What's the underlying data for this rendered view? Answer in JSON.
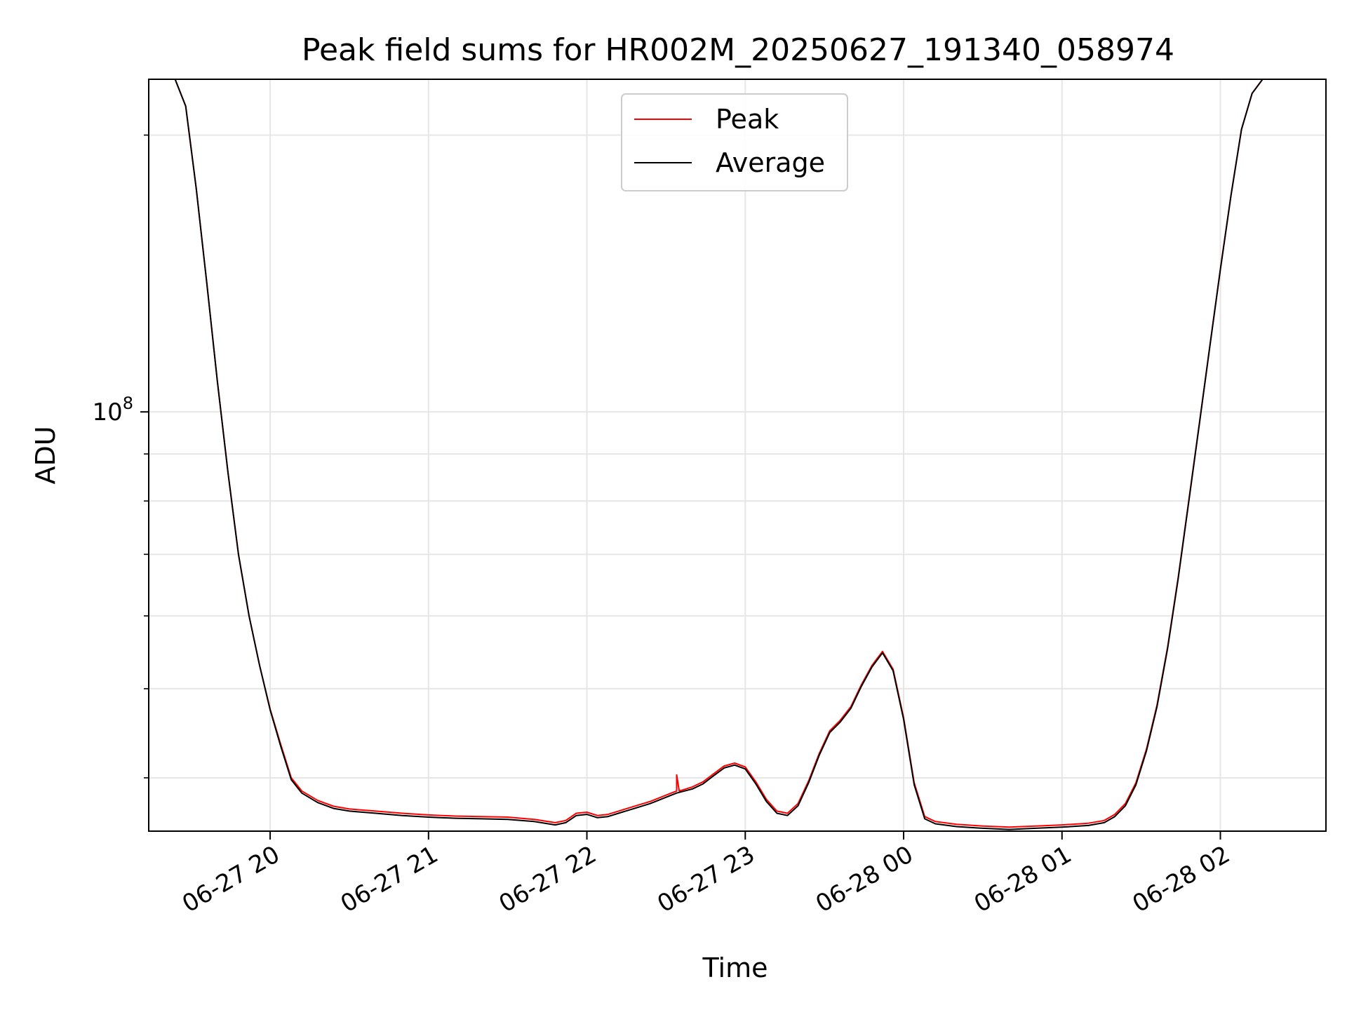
{
  "chart_data": {
    "type": "line",
    "title": "Peak field sums for HR002M_20250627_191340_058974",
    "xlabel": "Time",
    "ylabel": "ADU",
    "xlim": [
      "2025-06-27 19:14",
      "2025-06-28 02:40"
    ],
    "ylim": [
      35000000,
      230000000
    ],
    "yscale": "log",
    "grid": true,
    "legend_position": "upper center",
    "x_ticks": [
      {
        "t": "2025-06-27 20:00",
        "label": "06-27 20"
      },
      {
        "t": "2025-06-27 21:00",
        "label": "06-27 21"
      },
      {
        "t": "2025-06-27 22:00",
        "label": "06-27 22"
      },
      {
        "t": "2025-06-27 23:00",
        "label": "06-27 23"
      },
      {
        "t": "2025-06-28 00:00",
        "label": "06-28 00"
      },
      {
        "t": "2025-06-28 01:00",
        "label": "06-28 01"
      },
      {
        "t": "2025-06-28 02:00",
        "label": "06-28 02"
      }
    ],
    "y_major_ticks": [
      {
        "value": 100000000,
        "base": "10",
        "exp": "8"
      }
    ],
    "y_minor_ticks": [
      40000000,
      50000000,
      60000000,
      70000000,
      80000000,
      90000000,
      200000000
    ],
    "series": [
      {
        "name": "Peak",
        "color": "#ff0000",
        "points": [
          [
            "2025-06-27 19:24",
            230000000
          ],
          [
            "2025-06-27 19:28",
            215000000
          ],
          [
            "2025-06-27 19:32",
            175000000
          ],
          [
            "2025-06-27 19:36",
            138000000
          ],
          [
            "2025-06-27 19:40",
            108000000
          ],
          [
            "2025-06-27 19:44",
            86000000
          ],
          [
            "2025-06-27 19:48",
            70000000
          ],
          [
            "2025-06-27 19:52",
            60000000
          ],
          [
            "2025-06-27 19:56",
            53000000
          ],
          [
            "2025-06-27 20:00",
            47500000
          ],
          [
            "2025-06-27 20:04",
            43500000
          ],
          [
            "2025-06-27 20:08",
            40000000
          ],
          [
            "2025-06-27 20:12",
            38700000
          ],
          [
            "2025-06-27 20:18",
            37800000
          ],
          [
            "2025-06-27 20:24",
            37250000
          ],
          [
            "2025-06-27 20:30",
            37000000
          ],
          [
            "2025-06-27 20:40",
            36800000
          ],
          [
            "2025-06-27 20:50",
            36600000
          ],
          [
            "2025-06-27 21:00",
            36450000
          ],
          [
            "2025-06-27 21:10",
            36350000
          ],
          [
            "2025-06-27 21:20",
            36300000
          ],
          [
            "2025-06-27 21:30",
            36250000
          ],
          [
            "2025-06-27 21:40",
            36050000
          ],
          [
            "2025-06-27 21:48",
            35750000
          ],
          [
            "2025-06-27 21:52",
            35950000
          ],
          [
            "2025-06-27 21:56",
            36600000
          ],
          [
            "2025-06-27 22:00",
            36700000
          ],
          [
            "2025-06-27 22:04",
            36400000
          ],
          [
            "2025-06-27 22:08",
            36500000
          ],
          [
            "2025-06-27 22:12",
            36800000
          ],
          [
            "2025-06-27 22:16",
            37100000
          ],
          [
            "2025-06-27 22:20",
            37400000
          ],
          [
            "2025-06-27 22:24",
            37700000
          ],
          [
            "2025-06-27 22:28",
            38100000
          ],
          [
            "2025-06-27 22:32",
            38500000
          ],
          [
            "2025-06-27 22:34",
            38700000
          ],
          [
            "2025-06-27 22:34",
            40300000
          ],
          [
            "2025-06-27 22:35",
            38700000
          ],
          [
            "2025-06-27 22:40",
            39100000
          ],
          [
            "2025-06-27 22:44",
            39600000
          ],
          [
            "2025-06-27 22:48",
            40400000
          ],
          [
            "2025-06-27 22:52",
            41200000
          ],
          [
            "2025-06-27 22:56",
            41500000
          ],
          [
            "2025-06-27 23:00",
            41100000
          ],
          [
            "2025-06-27 23:04",
            39600000
          ],
          [
            "2025-06-27 23:08",
            37900000
          ],
          [
            "2025-06-27 23:12",
            36800000
          ],
          [
            "2025-06-27 23:16",
            36600000
          ],
          [
            "2025-06-27 23:20",
            37500000
          ],
          [
            "2025-06-27 23:24",
            39700000
          ],
          [
            "2025-06-27 23:28",
            42500000
          ],
          [
            "2025-06-27 23:32",
            45000000
          ],
          [
            "2025-06-27 23:36",
            46200000
          ],
          [
            "2025-06-27 23:40",
            47800000
          ],
          [
            "2025-06-27 23:44",
            50500000
          ],
          [
            "2025-06-27 23:48",
            53000000
          ],
          [
            "2025-06-27 23:52",
            54900000
          ],
          [
            "2025-06-27 23:56",
            52500000
          ],
          [
            "2025-06-28 00:00",
            46500000
          ],
          [
            "2025-06-28 00:04",
            39500000
          ],
          [
            "2025-06-28 00:08",
            36300000
          ],
          [
            "2025-06-28 00:12",
            35850000
          ],
          [
            "2025-06-28 00:20",
            35600000
          ],
          [
            "2025-06-28 00:30",
            35450000
          ],
          [
            "2025-06-28 00:40",
            35350000
          ],
          [
            "2025-06-28 00:50",
            35450000
          ],
          [
            "2025-06-28 01:00",
            35550000
          ],
          [
            "2025-06-28 01:10",
            35700000
          ],
          [
            "2025-06-28 01:16",
            35950000
          ],
          [
            "2025-06-28 01:20",
            36500000
          ],
          [
            "2025-06-28 01:24",
            37500000
          ],
          [
            "2025-06-28 01:28",
            39500000
          ],
          [
            "2025-06-28 01:32",
            43000000
          ],
          [
            "2025-06-28 01:36",
            48000000
          ],
          [
            "2025-06-28 01:40",
            55500000
          ],
          [
            "2025-06-28 01:44",
            66000000
          ],
          [
            "2025-06-28 01:48",
            80000000
          ],
          [
            "2025-06-28 01:52",
            97000000
          ],
          [
            "2025-06-28 01:56",
            118000000
          ],
          [
            "2025-06-28 02:00",
            143000000
          ],
          [
            "2025-06-28 02:04",
            172000000
          ],
          [
            "2025-06-28 02:08",
            203000000
          ],
          [
            "2025-06-28 02:12",
            222000000
          ],
          [
            "2025-06-28 02:16",
            230000000
          ],
          [
            "2025-06-28 02:20",
            230000000
          ]
        ]
      },
      {
        "name": "Average",
        "color": "#000000",
        "points": [
          [
            "2025-06-27 19:24",
            230000000
          ],
          [
            "2025-06-27 19:28",
            215000000
          ],
          [
            "2025-06-27 19:32",
            175000000
          ],
          [
            "2025-06-27 19:36",
            138000000
          ],
          [
            "2025-06-27 19:40",
            108000000
          ],
          [
            "2025-06-27 19:44",
            86000000
          ],
          [
            "2025-06-27 19:48",
            70000000
          ],
          [
            "2025-06-27 19:52",
            60000000
          ],
          [
            "2025-06-27 19:56",
            53000000
          ],
          [
            "2025-06-27 20:00",
            47400000
          ],
          [
            "2025-06-27 20:04",
            43300000
          ],
          [
            "2025-06-27 20:08",
            39800000
          ],
          [
            "2025-06-27 20:12",
            38500000
          ],
          [
            "2025-06-27 20:18",
            37600000
          ],
          [
            "2025-06-27 20:24",
            37050000
          ],
          [
            "2025-06-27 20:30",
            36800000
          ],
          [
            "2025-06-27 20:40",
            36600000
          ],
          [
            "2025-06-27 20:50",
            36400000
          ],
          [
            "2025-06-27 21:00",
            36250000
          ],
          [
            "2025-06-27 21:10",
            36150000
          ],
          [
            "2025-06-27 21:20",
            36100000
          ],
          [
            "2025-06-27 21:30",
            36050000
          ],
          [
            "2025-06-27 21:40",
            35850000
          ],
          [
            "2025-06-27 21:48",
            35550000
          ],
          [
            "2025-06-27 21:52",
            35750000
          ],
          [
            "2025-06-27 21:56",
            36400000
          ],
          [
            "2025-06-27 22:00",
            36500000
          ],
          [
            "2025-06-27 22:04",
            36200000
          ],
          [
            "2025-06-27 22:08",
            36300000
          ],
          [
            "2025-06-27 22:12",
            36600000
          ],
          [
            "2025-06-27 22:16",
            36900000
          ],
          [
            "2025-06-27 22:20",
            37200000
          ],
          [
            "2025-06-27 22:24",
            37500000
          ],
          [
            "2025-06-27 22:28",
            37900000
          ],
          [
            "2025-06-27 22:32",
            38300000
          ],
          [
            "2025-06-27 22:34",
            38500000
          ],
          [
            "2025-06-27 22:40",
            38900000
          ],
          [
            "2025-06-27 22:44",
            39400000
          ],
          [
            "2025-06-27 22:48",
            40200000
          ],
          [
            "2025-06-27 22:52",
            41000000
          ],
          [
            "2025-06-27 22:56",
            41300000
          ],
          [
            "2025-06-27 23:00",
            40900000
          ],
          [
            "2025-06-27 23:04",
            39400000
          ],
          [
            "2025-06-27 23:08",
            37700000
          ],
          [
            "2025-06-27 23:12",
            36600000
          ],
          [
            "2025-06-27 23:16",
            36400000
          ],
          [
            "2025-06-27 23:20",
            37300000
          ],
          [
            "2025-06-27 23:24",
            39500000
          ],
          [
            "2025-06-27 23:28",
            42300000
          ],
          [
            "2025-06-27 23:32",
            44800000
          ],
          [
            "2025-06-27 23:36",
            46000000
          ],
          [
            "2025-06-27 23:40",
            47600000
          ],
          [
            "2025-06-27 23:44",
            50300000
          ],
          [
            "2025-06-27 23:48",
            52800000
          ],
          [
            "2025-06-27 23:52",
            54700000
          ],
          [
            "2025-06-27 23:56",
            52300000
          ],
          [
            "2025-06-28 00:00",
            46300000
          ],
          [
            "2025-06-28 00:04",
            39300000
          ],
          [
            "2025-06-28 00:08",
            36100000
          ],
          [
            "2025-06-28 00:12",
            35650000
          ],
          [
            "2025-06-28 00:20",
            35400000
          ],
          [
            "2025-06-28 00:30",
            35250000
          ],
          [
            "2025-06-28 00:40",
            35150000
          ],
          [
            "2025-06-28 00:50",
            35250000
          ],
          [
            "2025-06-28 01:00",
            35350000
          ],
          [
            "2025-06-28 01:10",
            35500000
          ],
          [
            "2025-06-28 01:16",
            35750000
          ],
          [
            "2025-06-28 01:20",
            36300000
          ],
          [
            "2025-06-28 01:24",
            37300000
          ],
          [
            "2025-06-28 01:28",
            39300000
          ],
          [
            "2025-06-28 01:32",
            42800000
          ],
          [
            "2025-06-28 01:36",
            47800000
          ],
          [
            "2025-06-28 01:40",
            55300000
          ],
          [
            "2025-06-28 01:44",
            65800000
          ],
          [
            "2025-06-28 01:48",
            79800000
          ],
          [
            "2025-06-28 01:52",
            96800000
          ],
          [
            "2025-06-28 01:56",
            117800000
          ],
          [
            "2025-06-28 02:00",
            142800000
          ],
          [
            "2025-06-28 02:04",
            171800000
          ],
          [
            "2025-06-28 02:08",
            202800000
          ],
          [
            "2025-06-28 02:12",
            222000000
          ],
          [
            "2025-06-28 02:16",
            230000000
          ],
          [
            "2025-06-28 02:20",
            230000000
          ]
        ]
      }
    ]
  }
}
